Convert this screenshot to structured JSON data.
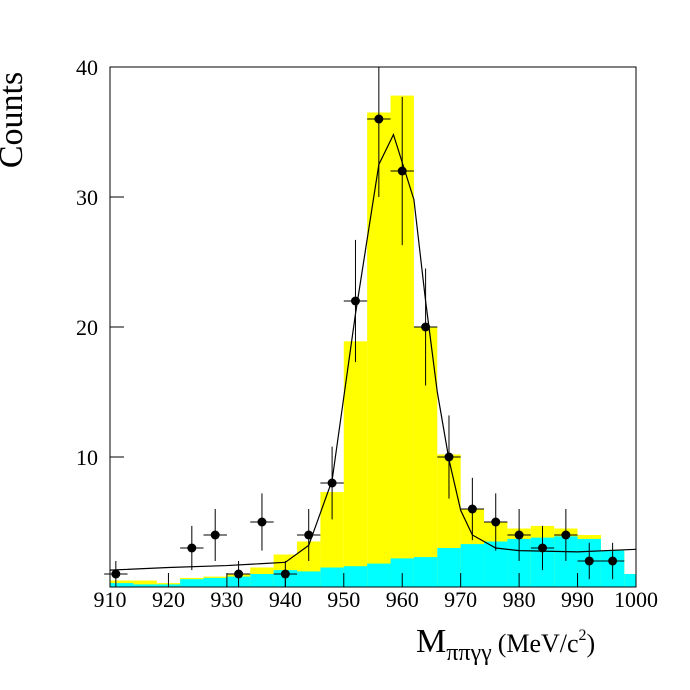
{
  "chart_data": {
    "type": "histogram",
    "ylabel": "Counts",
    "xlabel_parts": [
      "M",
      "ππγγ",
      "(MeV/c",
      "2",
      ")"
    ],
    "xlim": [
      910,
      1000
    ],
    "ylim": [
      0,
      40
    ],
    "xticks": [
      910,
      920,
      930,
      940,
      950,
      960,
      970,
      980,
      990,
      1000
    ],
    "yticks": [
      10,
      20,
      30,
      40
    ],
    "bins": [
      910,
      914,
      918,
      922,
      926,
      930,
      934,
      938,
      942,
      946,
      950,
      954,
      958,
      962,
      966,
      970,
      974,
      978,
      982,
      986,
      990,
      994,
      998,
      1000
    ],
    "series": [
      {
        "color": "#ffff00",
        "values": [
          0.5,
          0.5,
          0.3,
          0.7,
          0.8,
          1.0,
          1.5,
          2.5,
          3.5,
          7.3,
          18.9,
          36.5,
          37.8,
          20,
          10.2,
          6,
          5,
          4.5,
          4.7,
          4.5,
          4.0,
          2.8,
          1.0
        ]
      },
      {
        "color": "#00ffff",
        "values": [
          0.3,
          0.2,
          0.2,
          0.6,
          0.7,
          0.8,
          1.0,
          1.3,
          1.2,
          1.5,
          1.6,
          1.8,
          2.2,
          2.3,
          3.0,
          3.3,
          3.5,
          3.7,
          3.8,
          3.9,
          3.7,
          2.8,
          1.0
        ]
      }
    ],
    "points": {
      "color": "#000000",
      "xerr": 2,
      "x": [
        911,
        924,
        928,
        932,
        936,
        940,
        944,
        948,
        952,
        956,
        960,
        964,
        968,
        972,
        976,
        980,
        984,
        988,
        992,
        996
      ],
      "values": [
        1,
        3,
        4,
        1,
        5,
        1,
        4,
        8,
        22,
        36,
        32,
        20,
        10,
        6,
        5,
        4,
        3,
        4,
        2,
        2
      ],
      "errors": [
        1,
        1.7,
        2,
        1,
        2.2,
        1,
        2,
        2.8,
        4.7,
        6,
        5.7,
        4.5,
        3.2,
        2.4,
        2.2,
        2,
        1.7,
        2,
        1.4,
        1.4
      ]
    },
    "fit": {
      "color": "#000000",
      "x": [
        910,
        920,
        930,
        936,
        940,
        944,
        948,
        952,
        956,
        958.5,
        962,
        964,
        966,
        968,
        970,
        972,
        976,
        980,
        990,
        1000
      ],
      "values": [
        1.3,
        1.5,
        1.65,
        1.8,
        1.9,
        3.2,
        8.2,
        21,
        32.5,
        34.8,
        29.8,
        22,
        15,
        9.8,
        5.9,
        4,
        3,
        2.8,
        2.7,
        2.9
      ]
    }
  }
}
